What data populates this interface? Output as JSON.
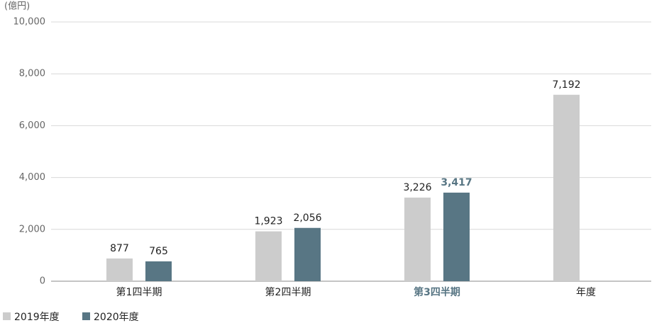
{
  "chart_data": {
    "type": "bar",
    "y_label": "(億円)",
    "categories": [
      "第1四半期",
      "第2四半期",
      "第3四半期",
      "年度"
    ],
    "series": [
      {
        "name": "2019年度",
        "color": "#cccccc",
        "values": [
          877,
          1923,
          3226,
          7192
        ],
        "value_labels": [
          "877",
          "1,923",
          "3,226",
          "7,192"
        ]
      },
      {
        "name": "2020年度",
        "color": "#587684",
        "values": [
          765,
          2056,
          3417,
          null
        ],
        "value_labels": [
          "765",
          "2,056",
          "3,417",
          null
        ]
      }
    ],
    "ylim": [
      0,
      10000
    ],
    "yticks": [
      0,
      {
        "value": 2000,
        "label": "2,000"
      },
      {
        "value": 4000,
        "label": "4,000"
      },
      {
        "value": 6000,
        "label": "6,000"
      },
      {
        "value": 8000,
        "label": "8,000"
      },
      {
        "value": 10000,
        "label": "10,000"
      }
    ],
    "grid": true,
    "highlight_category": 2,
    "highlight_color": "#587684"
  }
}
